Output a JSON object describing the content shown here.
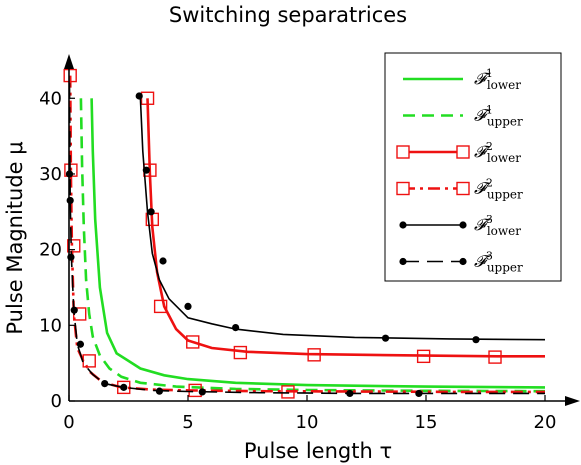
{
  "chart_data": {
    "type": "line",
    "title": "Switching separatrices",
    "xlabel": "Pulse length τ",
    "ylabel": "Pulse Magnitude μ",
    "xlim": [
      0,
      20
    ],
    "ylim": [
      0,
      44
    ],
    "x_ticks": [
      "0",
      "5",
      "10",
      "15",
      "20"
    ],
    "y_ticks": [
      "0",
      "10",
      "20",
      "30",
      "40"
    ],
    "grid": false,
    "legend_position": "top-right",
    "series": [
      {
        "name": "F1 lower",
        "base": "𝓕",
        "sup": "1",
        "sub": "lower",
        "color": "#22dd22",
        "dash": "solid",
        "marker": "none",
        "x": [
          0.95,
          1.0,
          1.1,
          1.3,
          1.6,
          2.0,
          3.0,
          4.0,
          5.0,
          7.0,
          10.0,
          15.0,
          20.0
        ],
        "y": [
          40,
          33,
          24,
          15,
          9,
          6.3,
          4.3,
          3.4,
          2.9,
          2.4,
          2.1,
          1.9,
          1.8
        ]
      },
      {
        "name": "F1 upper",
        "base": "𝓕",
        "sup": "1",
        "sub": "upper",
        "color": "#22dd22",
        "dash": "dashed",
        "marker": "none",
        "x": [
          0.5,
          0.55,
          0.62,
          0.72,
          0.85,
          1.0,
          1.3,
          1.7,
          2.2,
          3.0,
          4.5,
          7.0,
          10.0,
          15.0,
          20.0
        ],
        "y": [
          40,
          31,
          23,
          16,
          11.5,
          8.5,
          6.0,
          4.3,
          3.2,
          2.4,
          1.9,
          1.6,
          1.45,
          1.35,
          1.3
        ]
      },
      {
        "name": "F2 lower",
        "base": "𝓕",
        "sup": "2",
        "sub": "lower",
        "color": "#ee1111",
        "dash": "solid",
        "marker": "square",
        "x": [
          3.3,
          3.4,
          3.5,
          3.7,
          4.0,
          4.5,
          5.0,
          6.0,
          7.5,
          10.0,
          15.0,
          18.0,
          20.0
        ],
        "y": [
          40,
          30,
          23,
          17,
          12.5,
          9.5,
          8.0,
          7.0,
          6.5,
          6.2,
          6.0,
          5.9,
          5.9
        ],
        "markers": [
          [
            3.3,
            40
          ],
          [
            3.4,
            30.5
          ],
          [
            3.5,
            24
          ],
          [
            3.85,
            12.5
          ],
          [
            5.2,
            7.8
          ],
          [
            7.2,
            6.4
          ],
          [
            10.3,
            6.1
          ],
          [
            14.9,
            5.9
          ],
          [
            17.9,
            5.8
          ]
        ]
      },
      {
        "name": "F2 upper",
        "base": "𝓕",
        "sup": "2",
        "sub": "upper",
        "color": "#ee1111",
        "dash": "dashdot",
        "marker": "square",
        "x": [
          0.05,
          0.08,
          0.12,
          0.2,
          0.35,
          0.6,
          0.9,
          1.4,
          2.2,
          3.5,
          5.0,
          8.0,
          12.0,
          16.0,
          20.0
        ],
        "y": [
          43,
          30,
          20.5,
          11.5,
          7.0,
          5.3,
          3.8,
          2.5,
          1.8,
          1.5,
          1.4,
          1.3,
          1.25,
          1.2,
          1.2
        ],
        "markers": [
          [
            0.05,
            43
          ],
          [
            0.08,
            30.5
          ],
          [
            0.2,
            20.5
          ],
          [
            0.45,
            11.5
          ],
          [
            0.85,
            5.3
          ],
          [
            2.3,
            1.8
          ],
          [
            5.3,
            1.4
          ],
          [
            9.2,
            1.2
          ]
        ]
      },
      {
        "name": "F3 lower",
        "base": "𝓕",
        "sup": "3",
        "sub": "lower",
        "color": "#000000",
        "dash": "solid",
        "marker": "dot",
        "x": [
          3.0,
          3.1,
          3.3,
          3.5,
          3.8,
          4.2,
          5.0,
          6.0,
          7.0,
          9.0,
          12.0,
          16.0,
          20.0
        ],
        "y": [
          40,
          33,
          25,
          19.5,
          16,
          13.5,
          11,
          10.2,
          9.5,
          8.8,
          8.4,
          8.2,
          8.1
        ],
        "markers": [
          [
            2.95,
            40.3
          ],
          [
            3.25,
            30.5
          ],
          [
            3.45,
            25
          ],
          [
            3.95,
            18.5
          ],
          [
            5.0,
            12.5
          ],
          [
            7.0,
            9.7
          ],
          [
            13.3,
            8.3
          ],
          [
            17.1,
            8.1
          ]
        ]
      },
      {
        "name": "F3 upper",
        "base": "𝓕",
        "sup": "3",
        "sub": "upper",
        "color": "#000000",
        "dash": "longdash",
        "marker": "dot",
        "x": [
          0.02,
          0.05,
          0.1,
          0.2,
          0.35,
          0.6,
          1.0,
          1.5,
          2.3,
          3.5,
          5.0,
          8.0,
          12.0,
          16.0,
          20.0
        ],
        "y": [
          42,
          26.5,
          19,
          12,
          7.5,
          5.0,
          3.5,
          2.3,
          1.8,
          1.4,
          1.25,
          1.1,
          1.0,
          1.0,
          1.0
        ],
        "markers": [
          [
            0.02,
            30
          ],
          [
            0.05,
            26.5
          ],
          [
            0.08,
            19
          ],
          [
            0.22,
            12
          ],
          [
            0.48,
            7.5
          ],
          [
            1.5,
            2.3
          ],
          [
            2.3,
            1.8
          ],
          [
            3.8,
            1.3
          ],
          [
            5.6,
            1.2
          ],
          [
            11.8,
            1.0
          ],
          [
            14.7,
            1.0
          ]
        ]
      }
    ]
  }
}
